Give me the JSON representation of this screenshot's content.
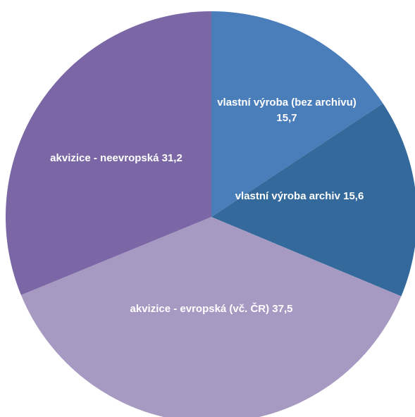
{
  "chart_data": {
    "type": "pie",
    "categories": [
      "vlastní výroba (bez archivu)",
      "vlastní výroba archiv",
      "akvizice - evropská (vč. ČR)",
      "akvizice - neevropská"
    ],
    "values": [
      15.7,
      15.6,
      37.5,
      31.2
    ],
    "value_labels": [
      "15,7",
      "15,6",
      "37,5",
      "31,2"
    ],
    "colors": [
      "#4a7ebb",
      "#336a9b",
      "#a69ac2",
      "#7b67a6"
    ]
  }
}
